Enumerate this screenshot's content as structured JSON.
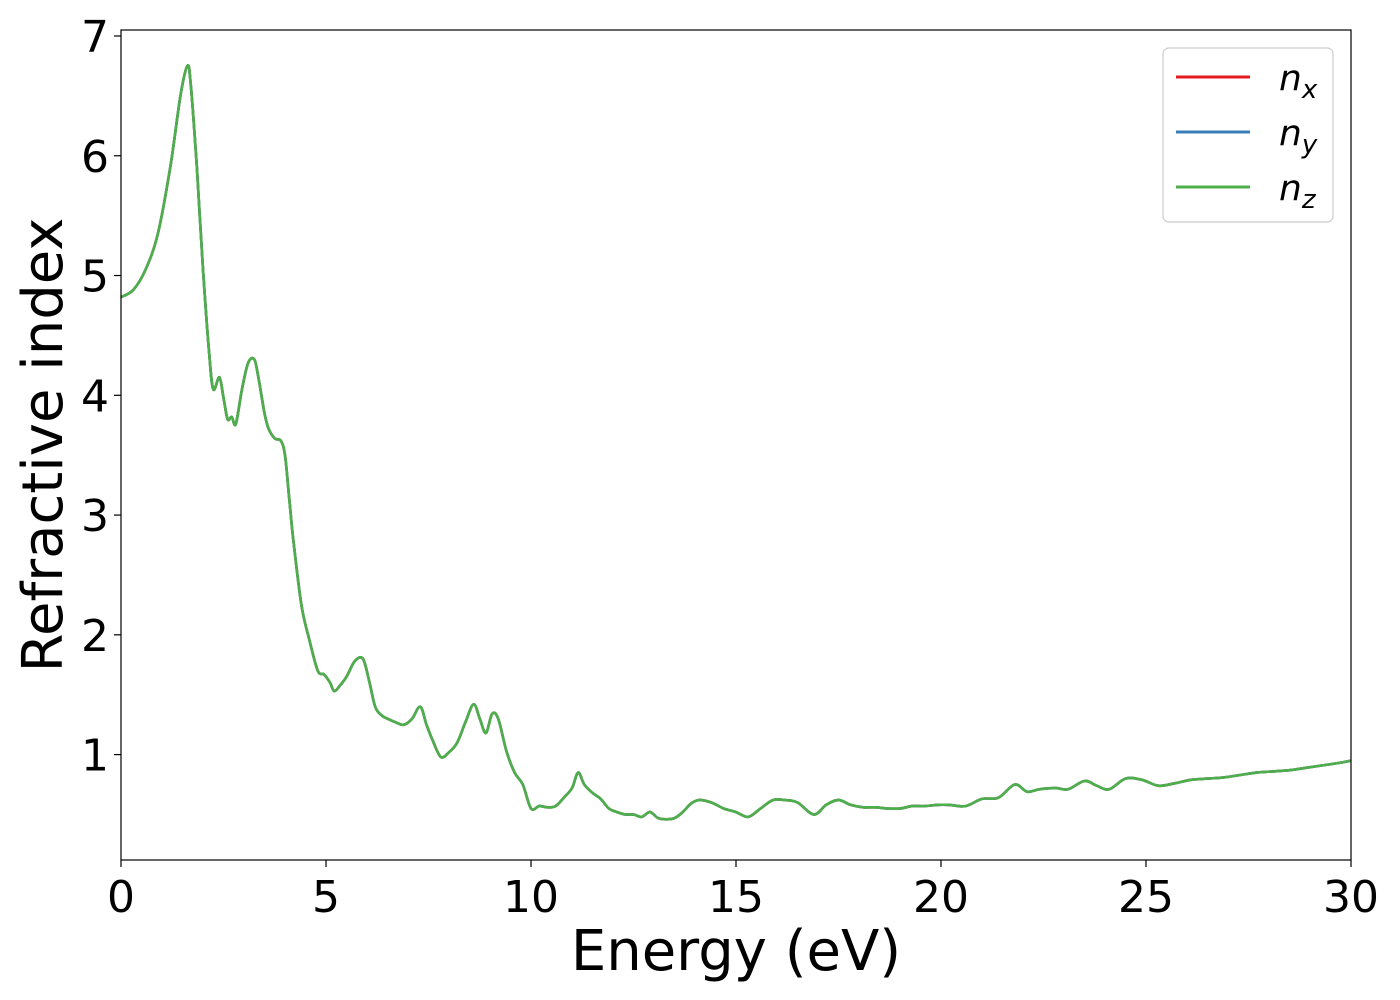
{
  "chart_data": {
    "type": "line",
    "xlabel": "Energy (eV)",
    "ylabel": "Refractive index",
    "xlim": [
      0,
      30
    ],
    "ylim": [
      0.12,
      7.05
    ],
    "xticks": [
      0,
      5,
      10,
      15,
      20,
      25,
      30
    ],
    "yticks": [
      1,
      2,
      3,
      4,
      5,
      6,
      7
    ],
    "grid": false,
    "legend_position": "top-right",
    "colors": {
      "n_x": "#e41a1c",
      "n_y": "#377eb8",
      "n_z": "#4daf4a"
    },
    "series": [
      {
        "name": "n_x",
        "symbol": "n",
        "subscript": "x"
      },
      {
        "name": "n_y",
        "symbol": "n",
        "subscript": "y"
      },
      {
        "name": "n_z",
        "symbol": "n",
        "subscript": "z"
      }
    ],
    "x": [
      0,
      0.3,
      0.6,
      0.9,
      1.2,
      1.45,
      1.62,
      1.7,
      1.85,
      2.0,
      2.15,
      2.25,
      2.4,
      2.5,
      2.6,
      2.7,
      2.8,
      2.95,
      3.1,
      3.25,
      3.35,
      3.5,
      3.6,
      3.75,
      3.9,
      4.0,
      4.1,
      4.2,
      4.4,
      4.6,
      4.8,
      4.95,
      5.1,
      5.2,
      5.35,
      5.5,
      5.7,
      5.9,
      6.05,
      6.2,
      6.35,
      6.5,
      6.7,
      6.9,
      7.1,
      7.3,
      7.45,
      7.6,
      7.8,
      8.0,
      8.2,
      8.4,
      8.6,
      8.75,
      8.9,
      9.05,
      9.2,
      9.4,
      9.6,
      9.8,
      10.0,
      10.2,
      10.4,
      10.6,
      10.8,
      11.0,
      11.15,
      11.3,
      11.5,
      11.7,
      11.9,
      12.1,
      12.3,
      12.5,
      12.7,
      12.9,
      13.1,
      13.3,
      13.5,
      13.7,
      13.9,
      14.1,
      14.4,
      14.7,
      15.0,
      15.3,
      15.6,
      15.9,
      16.2,
      16.5,
      16.9,
      17.2,
      17.5,
      17.8,
      18.1,
      18.4,
      18.7,
      19.0,
      19.3,
      19.6,
      19.9,
      20.2,
      20.6,
      21.0,
      21.4,
      21.8,
      22.1,
      22.4,
      22.8,
      23.1,
      23.5,
      23.8,
      24.1,
      24.5,
      24.9,
      25.3,
      25.7,
      26.1,
      26.5,
      26.9,
      27.3,
      27.7,
      28.1,
      28.5,
      28.9,
      29.3,
      29.7,
      30.0
    ],
    "values": [
      4.82,
      4.88,
      5.05,
      5.35,
      5.9,
      6.5,
      6.75,
      6.6,
      5.9,
      5.05,
      4.35,
      4.05,
      4.15,
      3.98,
      3.8,
      3.82,
      3.76,
      4.05,
      4.27,
      4.3,
      4.15,
      3.85,
      3.72,
      3.64,
      3.62,
      3.5,
      3.15,
      2.8,
      2.25,
      1.95,
      1.7,
      1.67,
      1.6,
      1.53,
      1.58,
      1.65,
      1.78,
      1.8,
      1.62,
      1.4,
      1.33,
      1.3,
      1.27,
      1.25,
      1.3,
      1.4,
      1.25,
      1.12,
      0.98,
      1.02,
      1.1,
      1.27,
      1.42,
      1.3,
      1.18,
      1.34,
      1.3,
      1.03,
      0.85,
      0.75,
      0.55,
      0.57,
      0.56,
      0.57,
      0.64,
      0.72,
      0.85,
      0.75,
      0.68,
      0.63,
      0.55,
      0.52,
      0.5,
      0.5,
      0.48,
      0.52,
      0.47,
      0.46,
      0.47,
      0.52,
      0.59,
      0.62,
      0.6,
      0.55,
      0.52,
      0.48,
      0.55,
      0.62,
      0.62,
      0.6,
      0.5,
      0.58,
      0.62,
      0.58,
      0.56,
      0.56,
      0.55,
      0.55,
      0.57,
      0.57,
      0.58,
      0.58,
      0.57,
      0.63,
      0.64,
      0.75,
      0.69,
      0.71,
      0.72,
      0.71,
      0.78,
      0.74,
      0.71,
      0.8,
      0.79,
      0.74,
      0.76,
      0.79,
      0.8,
      0.81,
      0.83,
      0.85,
      0.86,
      0.87,
      0.89,
      0.91,
      0.93,
      0.95
    ]
  }
}
